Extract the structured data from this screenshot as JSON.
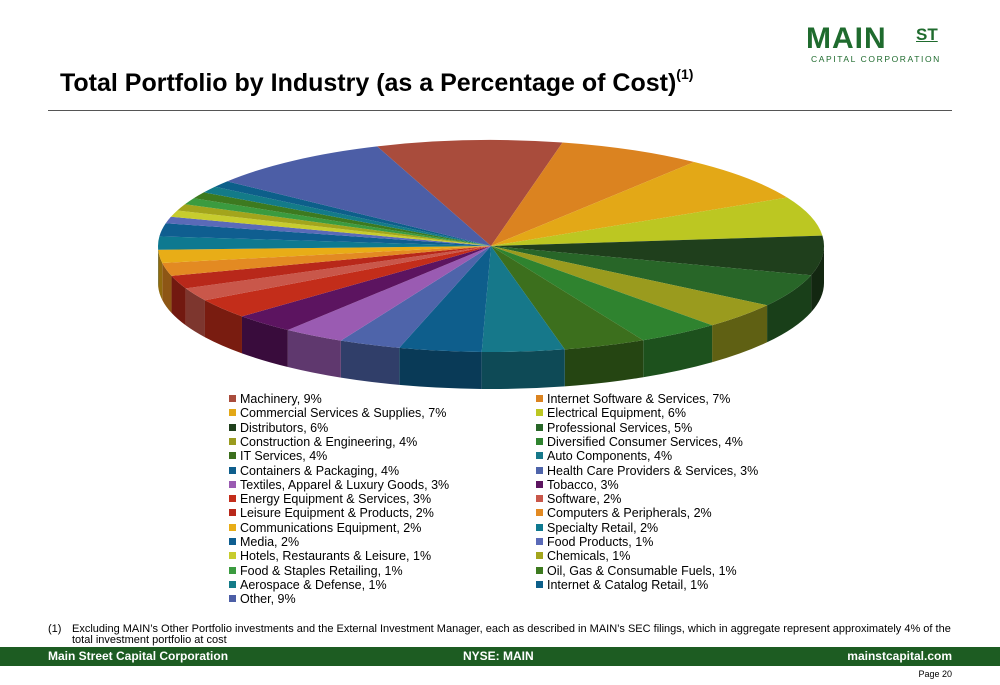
{
  "logo": {
    "main": "MAIN",
    "st": "ST",
    "sub": "CAPITAL CORPORATION"
  },
  "title": {
    "text": "Total Portfolio by Industry (as a Percentage of Cost)",
    "sup": "(1)"
  },
  "chart_data": {
    "type": "pie",
    "title": "",
    "slices": [
      {
        "label": "Machinery, 9%",
        "value": 9,
        "color": "#a94c3c"
      },
      {
        "label": "Internet Software & Services, 7%",
        "value": 7,
        "color": "#db8320"
      },
      {
        "label": "Commercial Services & Supplies, 7%",
        "value": 7,
        "color": "#e3a817"
      },
      {
        "label": "Electrical Equipment, 6%",
        "value": 6,
        "color": "#bcc722"
      },
      {
        "label": "Distributors, 6%",
        "value": 6,
        "color": "#1f3f1c"
      },
      {
        "label": "Professional Services, 5%",
        "value": 5,
        "color": "#286628"
      },
      {
        "label": "Construction & Engineering, 4%",
        "value": 4,
        "color": "#9a9b1e"
      },
      {
        "label": "Diversified Consumer Services, 4%",
        "value": 4,
        "color": "#2f832f"
      },
      {
        "label": "IT Services, 4%",
        "value": 4,
        "color": "#3c6f1d"
      },
      {
        "label": "Auto Components, 4%",
        "value": 4,
        "color": "#16788a"
      },
      {
        "label": "Containers & Packaging, 4%",
        "value": 4,
        "color": "#0e5e8c"
      },
      {
        "label": "Health Care Providers & Services, 3%",
        "value": 3,
        "color": "#4e64aa"
      },
      {
        "label": "Textiles, Apparel & Luxury Goods, 3%",
        "value": 3,
        "color": "#9a5bb2"
      },
      {
        "label": "Tobacco, 3%",
        "value": 3,
        "color": "#5c1460"
      },
      {
        "label": "Energy Equipment & Services, 3%",
        "value": 3,
        "color": "#c32d1a"
      },
      {
        "label": "Software, 2%",
        "value": 2,
        "color": "#c9574a"
      },
      {
        "label": "Leisure Equipment & Products, 2%",
        "value": 2,
        "color": "#b8281a"
      },
      {
        "label": "Computers & Peripherals, 2%",
        "value": 2,
        "color": "#e38a22"
      },
      {
        "label": "Communications Equipment, 2%",
        "value": 2,
        "color": "#e8ad17"
      },
      {
        "label": "Specialty Retail, 2%",
        "value": 2,
        "color": "#0e7990"
      },
      {
        "label": "Media, 2%",
        "value": 2,
        "color": "#0f5e90"
      },
      {
        "label": "Food Products, 1%",
        "value": 1,
        "color": "#5a6ab8"
      },
      {
        "label": "Hotels, Restaurants & Leisure, 1%",
        "value": 1,
        "color": "#c7cc2e"
      },
      {
        "label": "Chemicals, 1%",
        "value": 1,
        "color": "#a3a51c"
      },
      {
        "label": "Food & Staples Retailing, 1%",
        "value": 1,
        "color": "#3b9b3f"
      },
      {
        "label": "Oil, Gas & Consumable Fuels, 1%",
        "value": 1,
        "color": "#3d7a1f"
      },
      {
        "label": "Aerospace & Defense, 1%",
        "value": 1,
        "color": "#137b88"
      },
      {
        "label": "Internet & Catalog Retail, 1%",
        "value": 1,
        "color": "#0d5f8a"
      },
      {
        "label": "Other, 9%",
        "value": 9,
        "color": "#4c5ea6"
      }
    ]
  },
  "footnote": {
    "num": "(1)",
    "text": "Excluding MAIN’s Other Portfolio investments and the External Investment Manager, each as described in MAIN’s SEC filings, which in aggregate represent approximately 4% of the total investment portfolio at cost"
  },
  "footer": {
    "left": "Main Street Capital Corporation",
    "center": "NYSE: MAIN",
    "right": "mainstcapital.com"
  },
  "page": "Page  20"
}
